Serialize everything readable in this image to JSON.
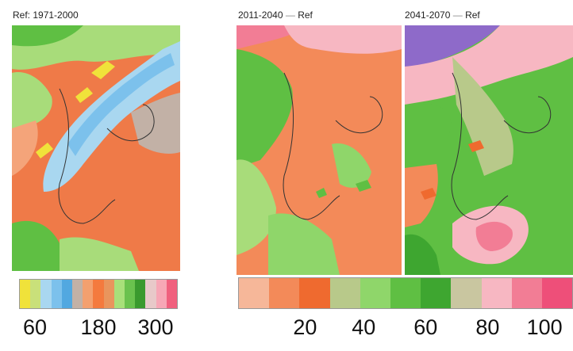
{
  "panels": [
    {
      "title": "Ref: 1971-2000",
      "suffix": ""
    },
    {
      "title": "2011-2040",
      "suffix": "Ref"
    },
    {
      "title": "2041-2070",
      "suffix": "Ref"
    }
  ],
  "legend_left": {
    "colors": [
      "#f0e23a",
      "#c9e07a",
      "#a9d7f0",
      "#7cc1ec",
      "#52a8e0",
      "#c2b1a6",
      "#f3a06f",
      "#f47a3e",
      "#e9955d",
      "#a8e07a",
      "#6ac24e",
      "#3a9a2e",
      "#e8c9c9",
      "#f7a7b6",
      "#f0607e"
    ],
    "labels": [
      "60",
      "180",
      "300"
    ]
  },
  "legend_right": {
    "colors": [
      "#f6b799",
      "#f38a59",
      "#ef6a2f",
      "#b8c98a",
      "#8fd66a",
      "#5fbf43",
      "#3ea630",
      "#c9c6a0",
      "#f7b7c2",
      "#f27d95",
      "#ee4f79"
    ],
    "labels": [
      "20",
      "40",
      "60",
      "80",
      "100"
    ]
  },
  "icons": {
    "title_separator": "dash-glyph"
  }
}
